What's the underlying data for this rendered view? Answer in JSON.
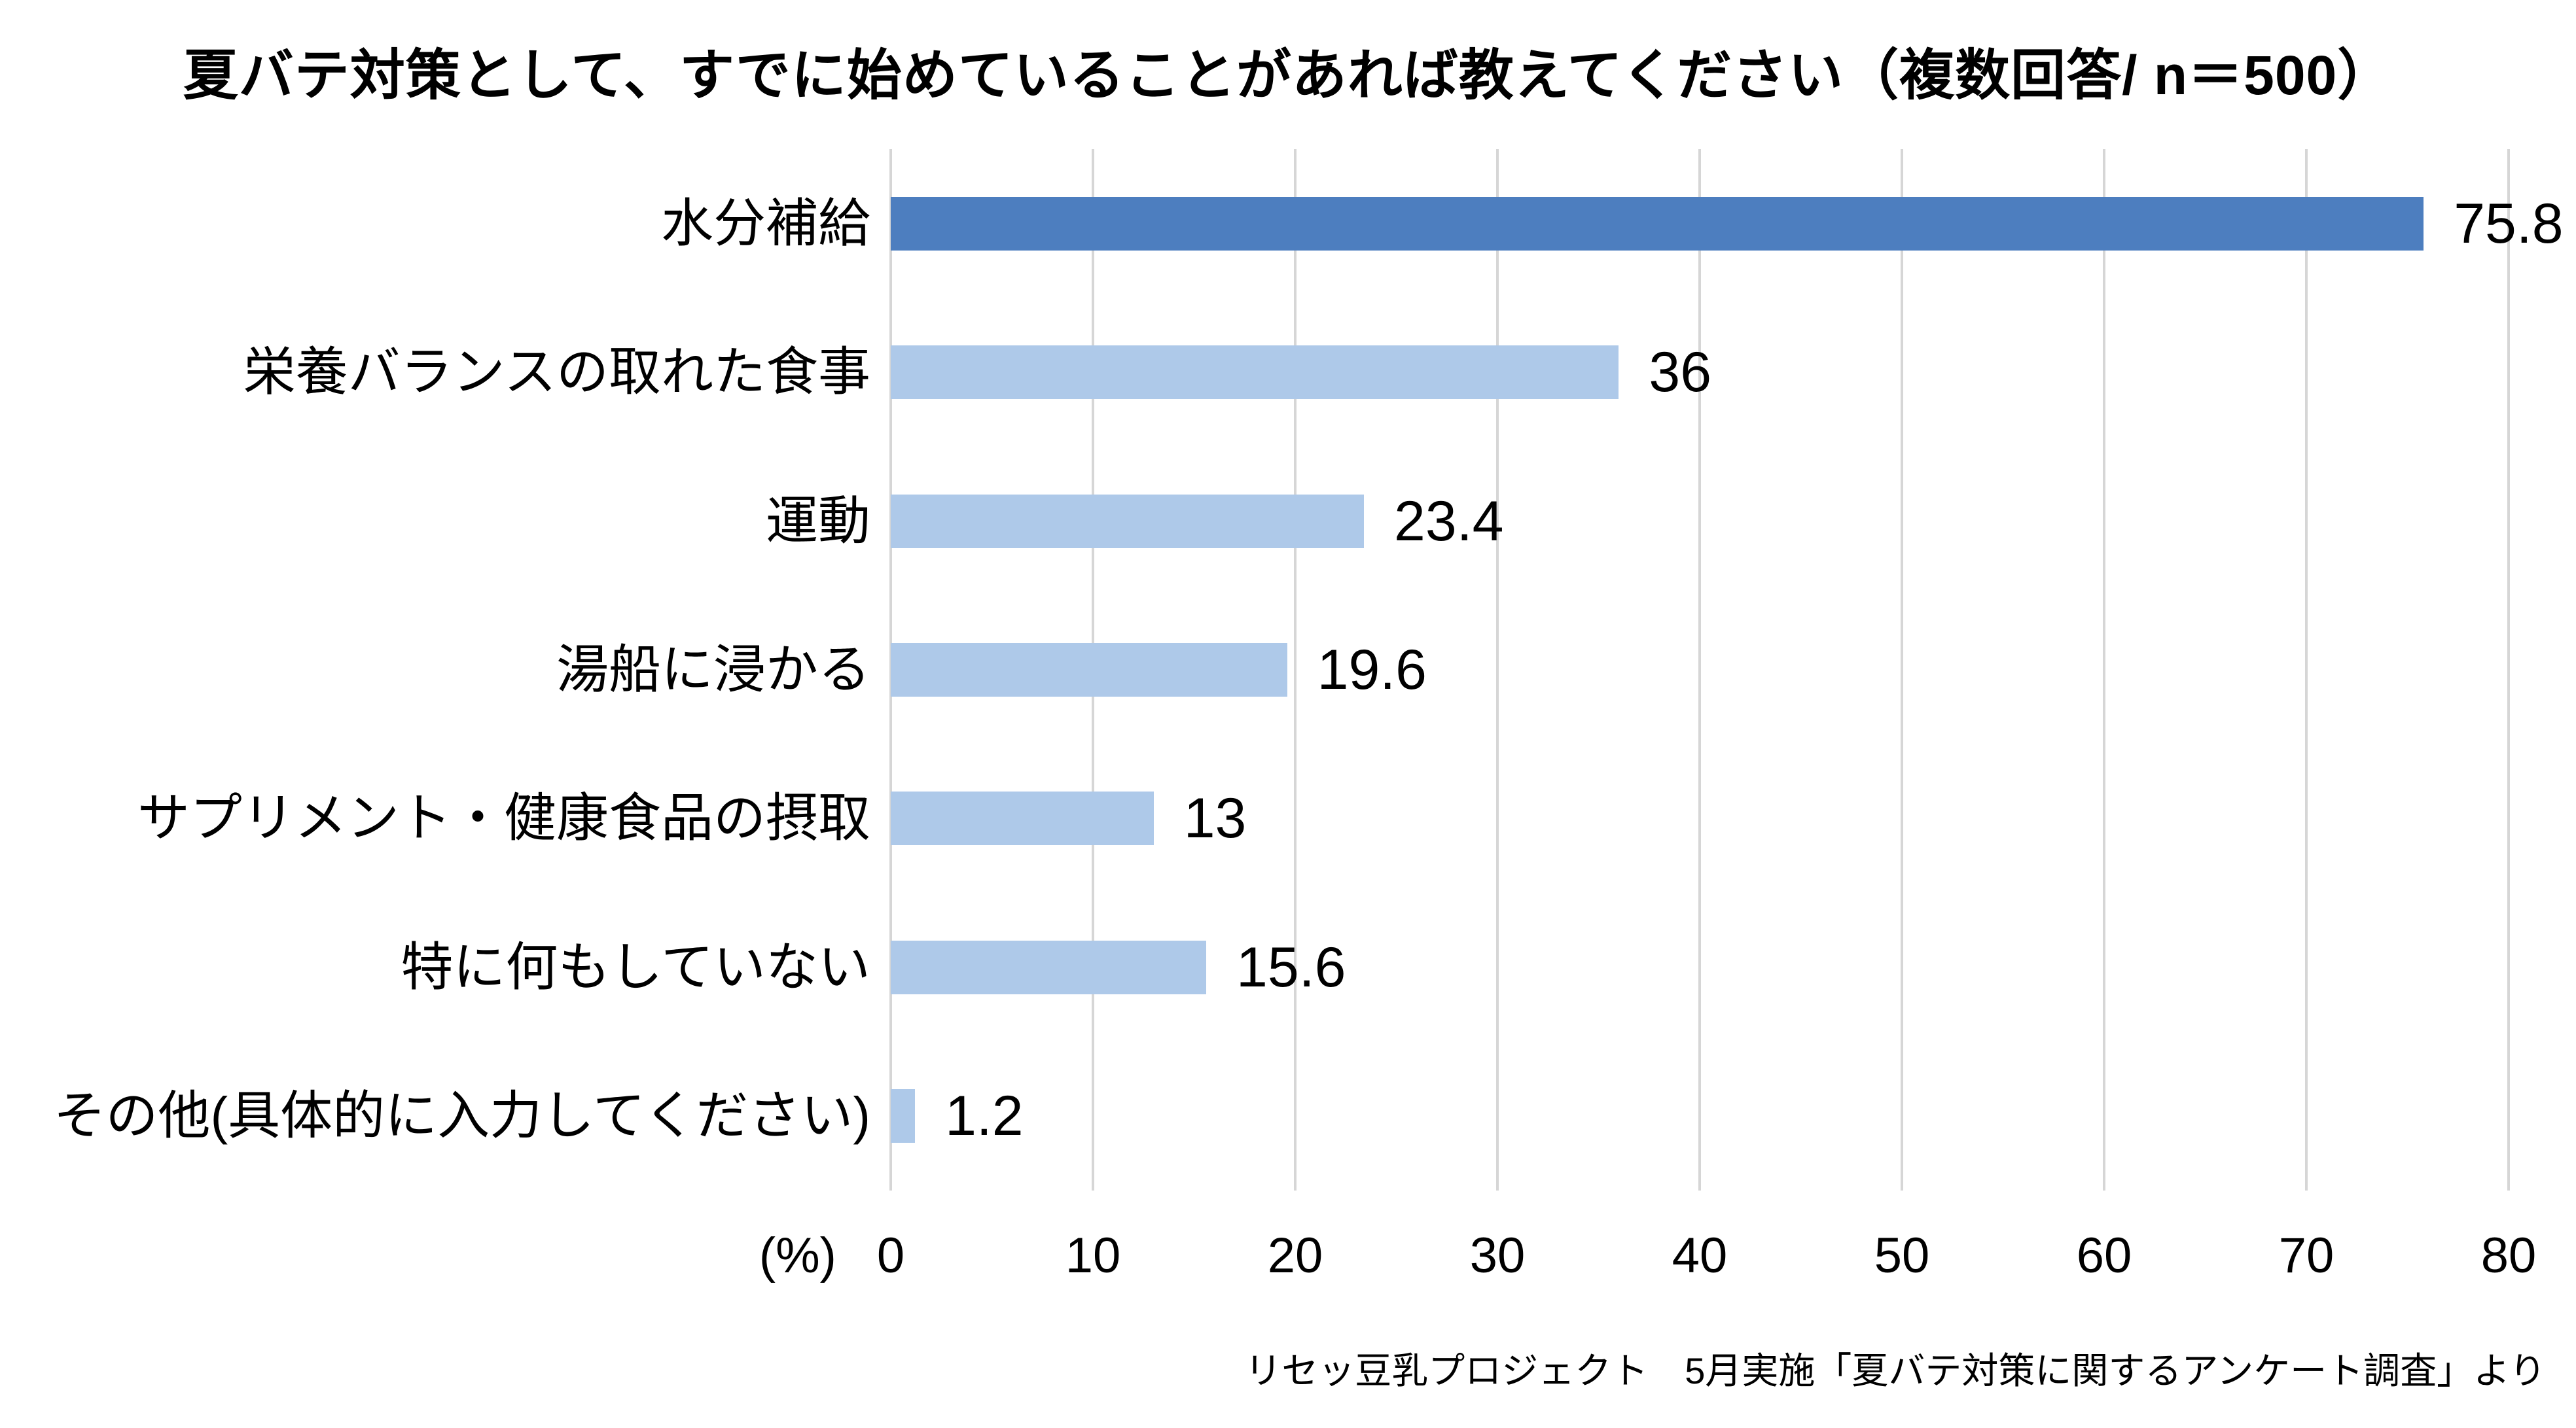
{
  "chart_data": {
    "type": "bar",
    "orientation": "horizontal",
    "title": "夏バテ対策として、すでに始めていることがあれば教えてください（複数回答/ n＝500）",
    "categories": [
      "水分補給",
      "栄養バランスの取れた食事",
      "運動",
      "湯船に浸かる",
      "サプリメント・健康食品の摂取",
      "特に何もしていない",
      "その他(具体的に入力してください)"
    ],
    "values": [
      75.8,
      36,
      23.4,
      19.6,
      13,
      15.6,
      1.2
    ],
    "value_labels": [
      "75.8",
      "36",
      "23.4",
      "19.6",
      "13",
      "15.6",
      "1.2"
    ],
    "xlabel_unit": "(%)",
    "x_ticks": [
      0,
      10,
      20,
      30,
      40,
      50,
      60,
      70,
      80
    ],
    "xlim": [
      0,
      80
    ],
    "grid": true,
    "legend": false,
    "highlight_index": 0,
    "colors": {
      "highlight_bar": "#4D7EBF",
      "bar": "#AEC9E9",
      "gridline": "#D6D6D6",
      "text": "#000000"
    },
    "source_note": "リセッ豆乳プロジェクト　5月実施「夏バテ対策に関するアンケート調査」より"
  }
}
